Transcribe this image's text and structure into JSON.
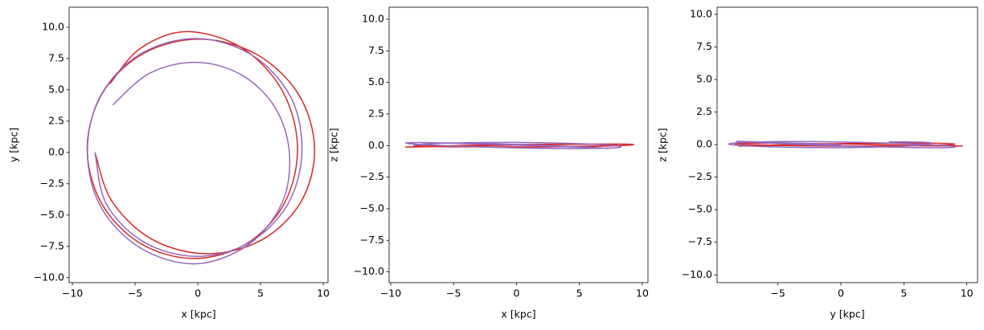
{
  "chart_data": [
    {
      "type": "line",
      "xlabel": "x [kpc]",
      "ylabel": "y [kpc]",
      "xlim": [
        -10.26,
        10.38
      ],
      "ylim": [
        -10.4,
        11.6
      ],
      "xticks": [
        {
          "value": -10,
          "label": "−10"
        },
        {
          "value": -5,
          "label": "−5"
        },
        0,
        5,
        10
      ],
      "yticks": [
        {
          "value": -10,
          "label": "−10.0"
        },
        {
          "value": -7.5,
          "label": "−7.5"
        },
        {
          "value": -5,
          "label": "−5.0"
        },
        {
          "value": -2.5,
          "label": "−2.5"
        },
        {
          "value": 0,
          "label": "0.0"
        },
        2.5,
        {
          "value": 5,
          "label": "5.0"
        },
        7.5,
        {
          "value": 10,
          "label": "10.0"
        }
      ],
      "series": [
        {
          "color": "#d62728",
          "x": [
            -8.2,
            -6.87,
            -3.66,
            0.73,
            5.1,
            8.25,
            9.31,
            8.02,
            4.68,
            0.18,
            -4.3,
            -7.58,
            -8.82,
            -7.71,
            -4.61,
            -0.36,
            3.87,
            6.91,
            7.95,
            6.69,
            3.46,
            -0.91,
            -4.6,
            -7
          ],
          "values": [
            0,
            -3.86,
            -6.94,
            -8.09,
            -6.99,
            -3.9,
            0.35,
            4.66,
            7.84,
            9.05,
            7.93,
            4.78,
            0.41,
            -4.0,
            -7.25,
            -8.47,
            -7.3,
            -4.05,
            0.46,
            5.01,
            8.38,
            9.65,
            8.3,
            5.5
          ]
        },
        {
          "color": "#9467bd",
          "x": [
            -8.2,
            -7.3,
            -4.33,
            -0.2,
            4.0,
            7.12,
            8.3,
            7.42,
            4.3,
            -0.2,
            -4.7,
            -7.82,
            -8.8,
            -7.73,
            -4.6,
            -0.2,
            4.05,
            6.73,
            7.3,
            6.12,
            3.4,
            -0.2,
            -3.85,
            -6.78
          ],
          "values": [
            0,
            -4.1,
            -7.14,
            -8.3,
            -7.27,
            -4.23,
            0,
            4.4,
            7.79,
            9.1,
            7.79,
            4.4,
            0,
            -4.35,
            -7.62,
            -8.9,
            -7.36,
            -4.0,
            0,
            3.65,
            6.24,
            7.2,
            6.32,
            3.8
          ]
        }
      ]
    },
    {
      "type": "line",
      "xlabel": "x [kpc]",
      "ylabel": "z [kpc]",
      "xlim": [
        -10.13,
        10.45
      ],
      "ylim": [
        -10.85,
        10.95
      ],
      "xticks": [
        {
          "value": -10,
          "label": "−10"
        },
        {
          "value": -5,
          "label": "−5"
        },
        0,
        5,
        10
      ],
      "yticks": [
        {
          "value": -10,
          "label": "−10.0"
        },
        {
          "value": -7.5,
          "label": "−7.5"
        },
        {
          "value": -5,
          "label": "−5.0"
        },
        {
          "value": -2.5,
          "label": "−2.5"
        },
        {
          "value": 0,
          "label": "0.0"
        },
        2.5,
        {
          "value": 5,
          "label": "5.0"
        },
        7.5,
        {
          "value": 10,
          "label": "10.0"
        }
      ],
      "series": [
        {
          "color": "#d62728",
          "x": [
            -8.2,
            -6.87,
            -3.66,
            0.73,
            5.1,
            8.25,
            9.31,
            8.02,
            4.68,
            0.18,
            -4.3,
            -7.58,
            -8.82,
            -7.71,
            -4.61,
            -0.36,
            3.87,
            6.91,
            7.95,
            6.69,
            3.46,
            -0.91,
            -4.6,
            -7
          ],
          "values": [
            0,
            -0.05,
            -0.1,
            -0.12,
            -0.08,
            0,
            0.08,
            0.12,
            0.1,
            0.04,
            -0.04,
            -0.1,
            -0.12,
            -0.08,
            0,
            0.07,
            0.11,
            0.1,
            0.04,
            -0.03,
            -0.09,
            -0.11,
            -0.1,
            -0.08
          ]
        },
        {
          "color": "#9467bd",
          "x": [
            -8.2,
            -7.3,
            -4.33,
            -0.2,
            4.0,
            7.12,
            8.3,
            7.42,
            4.3,
            -0.2,
            -4.7,
            -7.82,
            -8.8,
            -7.73,
            -4.6,
            -0.2,
            4.05,
            6.73,
            7.3,
            6.12,
            3.4,
            -0.2,
            -3.85,
            -6.78
          ],
          "values": [
            0,
            0.12,
            0.22,
            0.25,
            0.18,
            0.05,
            -0.1,
            -0.2,
            -0.24,
            -0.18,
            -0.05,
            0.1,
            0.2,
            0.24,
            0.17,
            0.04,
            -0.1,
            -0.2,
            -0.23,
            -0.16,
            -0.03,
            0.1,
            0.19,
            0.22
          ]
        }
      ]
    },
    {
      "type": "line",
      "xlabel": "y [kpc]",
      "ylabel": "z [kpc]",
      "xlim": [
        -9.83,
        10.85
      ],
      "ylim": [
        -10.6,
        10.55
      ],
      "xticks": [
        {
          "value": -5,
          "label": "−5"
        },
        0,
        5,
        10
      ],
      "yticks": [
        {
          "value": -10,
          "label": "−10.0"
        },
        {
          "value": -7.5,
          "label": "−7.5"
        },
        {
          "value": -5,
          "label": "−5.0"
        },
        {
          "value": -2.5,
          "label": "−2.5"
        },
        {
          "value": 0,
          "label": "0.0"
        },
        2.5,
        {
          "value": 5,
          "label": "5.0"
        },
        7.5,
        {
          "value": 10,
          "label": "10.0"
        }
      ],
      "series": [
        {
          "color": "#d62728",
          "x": [
            0,
            -3.86,
            -6.94,
            -8.09,
            -6.99,
            -3.9,
            0.35,
            4.66,
            7.84,
            9.05,
            7.93,
            4.78,
            0.41,
            -4.0,
            -7.25,
            -8.47,
            -7.3,
            -4.05,
            0.46,
            5.01,
            8.38,
            9.65,
            8.3,
            5.5
          ],
          "values": [
            0,
            -0.05,
            -0.1,
            -0.12,
            -0.08,
            0,
            0.08,
            0.12,
            0.1,
            0.04,
            -0.04,
            -0.1,
            -0.12,
            -0.08,
            0,
            0.07,
            0.11,
            0.1,
            0.04,
            -0.03,
            -0.09,
            -0.11,
            -0.1,
            -0.08
          ]
        },
        {
          "color": "#9467bd",
          "x": [
            0,
            -4.1,
            -7.14,
            -8.3,
            -7.27,
            -4.23,
            0,
            4.4,
            7.79,
            9.1,
            7.79,
            4.4,
            0,
            -4.35,
            -7.62,
            -8.9,
            -7.36,
            -4.0,
            0,
            3.65,
            6.24,
            7.2,
            6.32,
            3.8
          ],
          "values": [
            0,
            0.12,
            0.22,
            0.25,
            0.18,
            0.05,
            -0.1,
            -0.2,
            -0.24,
            -0.18,
            -0.05,
            0.1,
            0.2,
            0.24,
            0.17,
            0.04,
            -0.1,
            -0.2,
            -0.23,
            -0.16,
            -0.03,
            0.1,
            0.19,
            0.22
          ]
        }
      ]
    }
  ]
}
